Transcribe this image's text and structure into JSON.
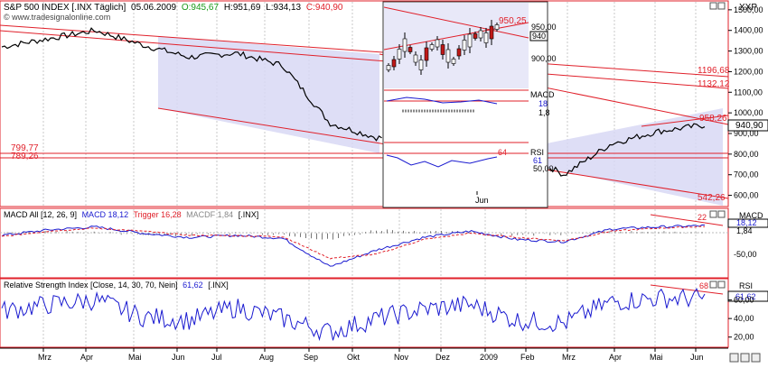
{
  "header": {
    "title": "S&P 500 INDEX [.INX  Täglich]",
    "date": "05.06.2009",
    "open": "O:945,67",
    "high": "H:951,69",
    "low": "L:934,13",
    "close": "C:940,90",
    "watermark": "© www.tradesignalonline.com",
    "symbol": "XXP"
  },
  "colors": {
    "price": "#000000",
    "channel_line": "#e0202a",
    "channel_fill": "#d8d8f4",
    "macd": "#1a1ad0",
    "trigger": "#e0202a",
    "rsi": "#1a1ad0",
    "panel_border": "#e0202a"
  },
  "time_axis": [
    "Mrz",
    "Apr",
    "Mai",
    "Jun",
    "Jul",
    "Aug",
    "Sep",
    "Okt",
    "Nov",
    "Dez",
    "2009",
    "Feb",
    "Mrz",
    "Apr",
    "Mai",
    "Jun"
  ],
  "price_panel": {
    "y_ticks": [
      "1500,00",
      "1400,00",
      "1300,00",
      "1200,00",
      "1100,00",
      "1000,00",
      "900,00",
      "800,00",
      "700,00",
      "600,00"
    ],
    "level_labels": {
      "l1196": "1196,68",
      "l1132": "1132,12",
      "l958": "958,26",
      "l950": "950,25",
      "l799": "799,77",
      "l789": "789,26",
      "l542": "542,26"
    },
    "last_price": "940,90"
  },
  "macd_panel": {
    "title": "MACD All [12, 26, 9]",
    "macd_label": "MACD 18,12",
    "trigger_label": "Trigger 16,28",
    "macdf_label": "MACDF 1,84",
    "source": "[.INX]",
    "box_label": "MACD",
    "values": [
      "18,12",
      "1,84"
    ],
    "y_ticks": [
      "-50,00"
    ],
    "level_label": "22"
  },
  "rsi_panel": {
    "title": "Relative Strength Index [Close, 14, 30, 70, Nein]",
    "value_label": "61,62",
    "source": "[.INX]",
    "box_label": "RSI",
    "value": "61,62",
    "y_ticks": [
      "60,00",
      "40,00",
      "20,00"
    ],
    "level_label": "68"
  },
  "inset": {
    "price_label": "950,25",
    "y_ticks": [
      "950,00",
      "900,00"
    ],
    "price_box": "940",
    "macd_box": "MACD",
    "macd_values": [
      "18",
      "1,8"
    ],
    "rsi_box": "RSI",
    "rsi_level": "64",
    "rsi_values": [
      "61",
      "50,00"
    ],
    "month": "Jun"
  },
  "chart_data": {
    "type": "line",
    "title": "S&P 500 INDEX",
    "x": [
      "Mrz",
      "Apr",
      "Mai",
      "Jun",
      "Jul",
      "Aug",
      "Sep",
      "Okt",
      "Nov",
      "Dez",
      "2009",
      "Feb",
      "Mrz",
      "Apr",
      "Mai",
      "Jun"
    ],
    "ylim": [
      550,
      1530
    ],
    "series": [
      {
        "name": "S&P 500 INDEX",
        "values": [
          1320,
          1360,
          1400,
          1330,
          1270,
          1290,
          1230,
          950,
          880,
          880,
          900,
          820,
          700,
          850,
          910,
          940.9
        ]
      },
      {
        "name": "MACD",
        "values": [
          -5,
          8,
          15,
          0,
          -10,
          -5,
          -12,
          -80,
          -40,
          -10,
          5,
          -15,
          -20,
          10,
          15,
          18.12
        ]
      },
      {
        "name": "Trigger",
        "values": [
          -8,
          5,
          12,
          5,
          -5,
          -6,
          -8,
          -60,
          -50,
          -15,
          0,
          -10,
          -18,
          5,
          12,
          16.28
        ]
      },
      {
        "name": "RSI",
        "values": [
          48,
          55,
          60,
          42,
          38,
          52,
          40,
          25,
          40,
          50,
          55,
          38,
          35,
          58,
          62,
          61.62
        ]
      }
    ]
  }
}
